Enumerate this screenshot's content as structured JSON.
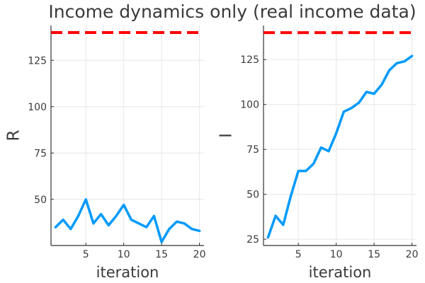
{
  "title": "Income dynamics only (real income data)",
  "colors": {
    "series": "#009AFA",
    "reference": "#FF0000"
  },
  "chart_data": [
    {
      "type": "line",
      "xlabel": "iteration",
      "ylabel": "R",
      "xlim": [
        0.4,
        20.6
      ],
      "ylim": [
        25.1,
        143.8
      ],
      "xticks": [
        5,
        10,
        15,
        20
      ],
      "yticks": [
        50,
        75,
        100,
        125
      ],
      "grid": true,
      "reference_line": {
        "y": 140,
        "style": "dashed"
      },
      "series": [
        {
          "x": [
            1,
            2,
            3,
            4,
            5,
            6,
            7,
            8,
            9,
            10,
            11,
            12,
            13,
            14,
            15,
            16,
            17,
            18,
            19,
            20
          ],
          "values": [
            35,
            39,
            34,
            41,
            50,
            37,
            42,
            36,
            41,
            47,
            39,
            37,
            35,
            41,
            27,
            34,
            38,
            37,
            34,
            33
          ]
        }
      ]
    },
    {
      "type": "line",
      "xlabel": "iteration",
      "ylabel": "I",
      "xlim": [
        0.4,
        20.6
      ],
      "ylim": [
        21.5,
        144
      ],
      "xticks": [
        5,
        10,
        15,
        20
      ],
      "yticks": [
        25,
        50,
        75,
        100,
        125
      ],
      "grid": true,
      "reference_line": {
        "y": 140,
        "style": "dashed"
      },
      "series": [
        {
          "x": [
            1,
            2,
            3,
            4,
            5,
            6,
            7,
            8,
            9,
            10,
            11,
            12,
            13,
            14,
            15,
            16,
            17,
            18,
            19,
            20
          ],
          "values": [
            26,
            38,
            33,
            49,
            63,
            63,
            67,
            76,
            74,
            84,
            96,
            98,
            101,
            107,
            106,
            111,
            119,
            123,
            124,
            127
          ]
        }
      ]
    }
  ]
}
